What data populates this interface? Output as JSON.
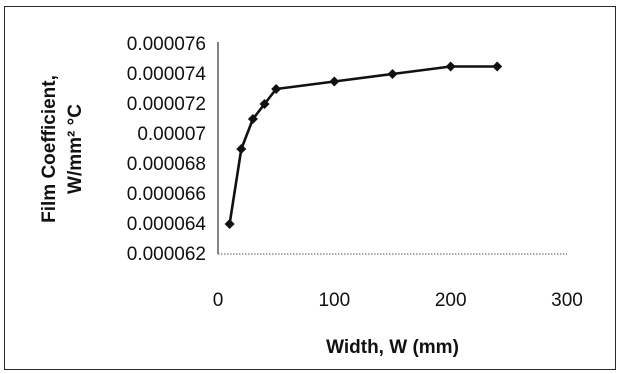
{
  "chart_data": {
    "type": "line",
    "title": "",
    "xlabel": "Width, W (mm)",
    "ylabel_lines": [
      "Film Coefficient,",
      "W/mm² °C"
    ],
    "xlim": [
      0,
      300
    ],
    "ylim": [
      6.2e-05,
      7.6e-05
    ],
    "x_ticks": [
      0,
      100,
      200,
      300
    ],
    "x_tick_labels": [
      "0",
      "100",
      "200",
      "300"
    ],
    "y_ticks": [
      6.2e-05,
      6.4e-05,
      6.6e-05,
      6.8e-05,
      7e-05,
      7.2e-05,
      7.4e-05,
      7.6e-05
    ],
    "y_tick_labels": [
      "0.000062",
      "0.000064",
      "0.000066",
      "0.000068",
      "0.00007",
      "0.000072",
      "0.000074",
      "0.000076"
    ],
    "grid": false,
    "legend": "none",
    "marker": "diamond",
    "line_color": "#111111",
    "series": [
      {
        "x": [
          10,
          20,
          30,
          40,
          50,
          100,
          150,
          200,
          240
        ],
        "y": [
          6.4e-05,
          6.9e-05,
          7.1e-05,
          7.2e-05,
          7.3e-05,
          7.35e-05,
          7.4e-05,
          7.45e-05,
          7.45e-05
        ]
      }
    ]
  }
}
